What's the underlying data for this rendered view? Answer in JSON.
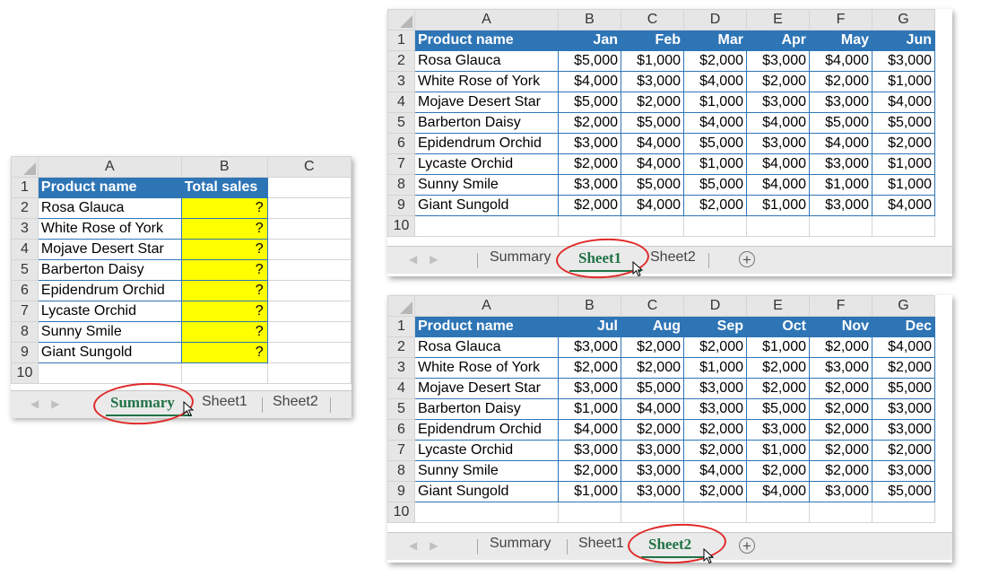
{
  "summary": {
    "col_headers": [
      "A",
      "B",
      "C"
    ],
    "row_headers": [
      "1",
      "2",
      "3",
      "4",
      "5",
      "6",
      "7",
      "8",
      "9",
      "10"
    ],
    "header_name": "Product name",
    "header_total": "Total sales",
    "products": [
      "Rosa Glauca",
      "White Rose of York",
      "Mojave Desert Star",
      "Barberton Daisy",
      "Epidendrum Orchid",
      "Lycaste Orchid",
      "Sunny Smile",
      "Giant Sungold"
    ],
    "placeholder": "?",
    "tabs": [
      "Summary",
      "Sheet1",
      "Sheet2"
    ],
    "active_tab": "Summary"
  },
  "sheet1": {
    "col_headers": [
      "A",
      "B",
      "C",
      "D",
      "E",
      "F",
      "G"
    ],
    "row_headers": [
      "1",
      "2",
      "3",
      "4",
      "5",
      "6",
      "7",
      "8",
      "9",
      "10"
    ],
    "header_name": "Product name",
    "months": [
      "Jan",
      "Feb",
      "Mar",
      "Apr",
      "May",
      "Jun"
    ],
    "rows": [
      [
        "Rosa Glauca",
        "$5,000",
        "$1,000",
        "$2,000",
        "$3,000",
        "$4,000",
        "$3,000"
      ],
      [
        "White Rose of York",
        "$4,000",
        "$3,000",
        "$4,000",
        "$2,000",
        "$2,000",
        "$1,000"
      ],
      [
        "Mojave Desert Star",
        "$5,000",
        "$2,000",
        "$1,000",
        "$3,000",
        "$3,000",
        "$4,000"
      ],
      [
        "Barberton Daisy",
        "$2,000",
        "$5,000",
        "$4,000",
        "$4,000",
        "$5,000",
        "$5,000"
      ],
      [
        "Epidendrum Orchid",
        "$3,000",
        "$4,000",
        "$5,000",
        "$3,000",
        "$4,000",
        "$2,000"
      ],
      [
        "Lycaste Orchid",
        "$2,000",
        "$4,000",
        "$1,000",
        "$4,000",
        "$3,000",
        "$1,000"
      ],
      [
        "Sunny Smile",
        "$3,000",
        "$5,000",
        "$5,000",
        "$4,000",
        "$1,000",
        "$1,000"
      ],
      [
        "Giant Sungold",
        "$2,000",
        "$4,000",
        "$2,000",
        "$1,000",
        "$3,000",
        "$4,000"
      ]
    ],
    "tabs": [
      "Summary",
      "Sheet1",
      "Sheet2"
    ],
    "active_tab": "Sheet1"
  },
  "sheet2": {
    "col_headers": [
      "A",
      "B",
      "C",
      "D",
      "E",
      "F",
      "G"
    ],
    "row_headers": [
      "1",
      "2",
      "3",
      "4",
      "5",
      "6",
      "7",
      "8",
      "9",
      "10"
    ],
    "header_name": "Product name",
    "months": [
      "Jul",
      "Aug",
      "Sep",
      "Oct",
      "Nov",
      "Dec"
    ],
    "rows": [
      [
        "Rosa Glauca",
        "$3,000",
        "$2,000",
        "$2,000",
        "$1,000",
        "$2,000",
        "$4,000"
      ],
      [
        "White Rose of York",
        "$2,000",
        "$2,000",
        "$1,000",
        "$2,000",
        "$3,000",
        "$2,000"
      ],
      [
        "Mojave Desert Star",
        "$3,000",
        "$5,000",
        "$3,000",
        "$2,000",
        "$2,000",
        "$5,000"
      ],
      [
        "Barberton Daisy",
        "$1,000",
        "$4,000",
        "$3,000",
        "$5,000",
        "$2,000",
        "$3,000"
      ],
      [
        "Epidendrum Orchid",
        "$4,000",
        "$2,000",
        "$2,000",
        "$3,000",
        "$2,000",
        "$3,000"
      ],
      [
        "Lycaste Orchid",
        "$3,000",
        "$3,000",
        "$2,000",
        "$1,000",
        "$2,000",
        "$2,000"
      ],
      [
        "Sunny Smile",
        "$2,000",
        "$3,000",
        "$4,000",
        "$2,000",
        "$2,000",
        "$3,000"
      ],
      [
        "Giant Sungold",
        "$1,000",
        "$3,000",
        "$2,000",
        "$4,000",
        "$3,000",
        "$5,000"
      ]
    ],
    "tabs": [
      "Summary",
      "Sheet1",
      "Sheet2"
    ],
    "active_tab": "Sheet2"
  },
  "colors": {
    "header_fill": "#2e75b6",
    "highlight": "#ffff00",
    "tab_active": "#217346",
    "annotation": "#e02a2a"
  },
  "icons": {
    "nav_prev": "chevron-left-icon",
    "nav_next": "chevron-right-icon",
    "add_sheet": "plus-circle-icon",
    "cursor": "pointer-cursor-icon"
  }
}
